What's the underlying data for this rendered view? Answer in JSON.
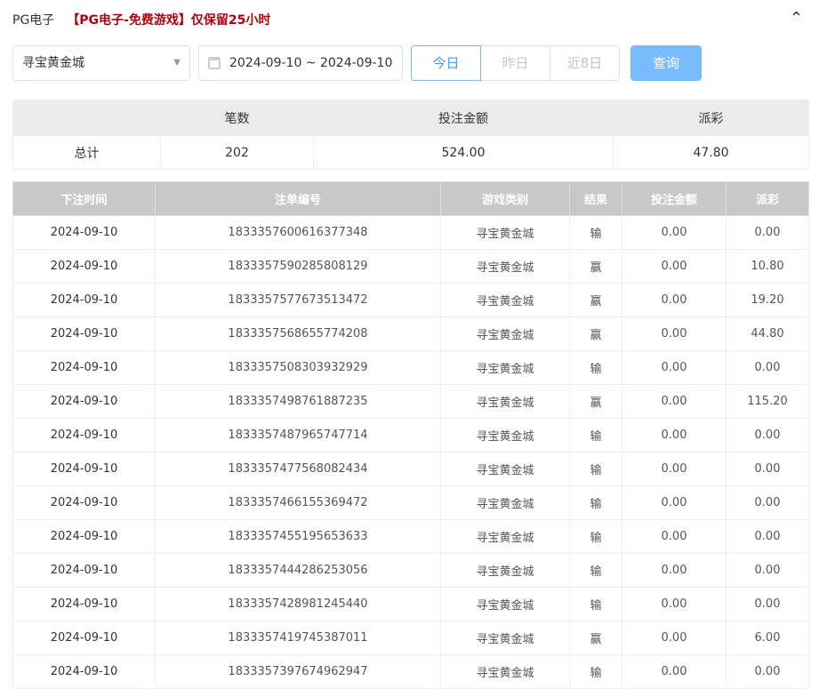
{
  "header": {
    "title": "PG电子",
    "notice": "【PG电子-免费游戏】仅保留25小时",
    "collapse_icon": "chevron-up-icon"
  },
  "filters": {
    "game": "寻宝黄金城",
    "date_range": "2024-09-10 ~ 2024-09-10",
    "today": "今日",
    "yesterday": "昨日",
    "last8": "近8日",
    "query": "查询"
  },
  "summary": {
    "headers": [
      "",
      "笔数",
      "投注金额",
      "派彩"
    ],
    "row": [
      "总计",
      "202",
      "524.00",
      "47.80"
    ]
  },
  "table": {
    "headers": [
      "下注时间",
      "注单编号",
      "游戏类别",
      "结果",
      "投注金额",
      "派彩"
    ],
    "rows": [
      [
        "2024-09-10",
        "1833357600616377348",
        "寻宝黄金城",
        "输",
        "0.00",
        "0.00"
      ],
      [
        "2024-09-10",
        "1833357590285808129",
        "寻宝黄金城",
        "赢",
        "0.00",
        "10.80"
      ],
      [
        "2024-09-10",
        "1833357577673513472",
        "寻宝黄金城",
        "赢",
        "0.00",
        "19.20"
      ],
      [
        "2024-09-10",
        "1833357568655774208",
        "寻宝黄金城",
        "赢",
        "0.00",
        "44.80"
      ],
      [
        "2024-09-10",
        "1833357508303932929",
        "寻宝黄金城",
        "输",
        "0.00",
        "0.00"
      ],
      [
        "2024-09-10",
        "1833357498761887235",
        "寻宝黄金城",
        "赢",
        "0.00",
        "115.20"
      ],
      [
        "2024-09-10",
        "1833357487965747714",
        "寻宝黄金城",
        "输",
        "0.00",
        "0.00"
      ],
      [
        "2024-09-10",
        "1833357477568082434",
        "寻宝黄金城",
        "输",
        "0.00",
        "0.00"
      ],
      [
        "2024-09-10",
        "1833357466155369472",
        "寻宝黄金城",
        "输",
        "0.00",
        "0.00"
      ],
      [
        "2024-09-10",
        "1833357455195653633",
        "寻宝黄金城",
        "输",
        "0.00",
        "0.00"
      ],
      [
        "2024-09-10",
        "1833357444286253056",
        "寻宝黄金城",
        "输",
        "0.00",
        "0.00"
      ],
      [
        "2024-09-10",
        "1833357428981245440",
        "寻宝黄金城",
        "输",
        "0.00",
        "0.00"
      ],
      [
        "2024-09-10",
        "1833357419745387011",
        "寻宝黄金城",
        "赢",
        "0.00",
        "6.00"
      ],
      [
        "2024-09-10",
        "1833357397674962947",
        "寻宝黄金城",
        "输",
        "0.00",
        "0.00"
      ]
    ]
  }
}
